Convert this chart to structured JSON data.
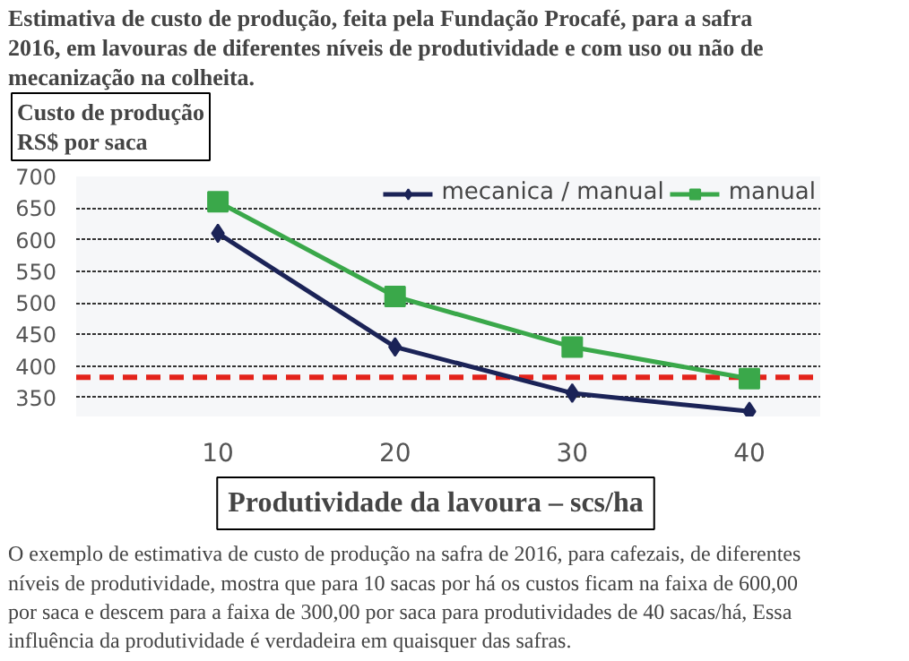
{
  "chart_data": {
    "type": "line",
    "title": "Estimativa de custo de produção, feita pela Fundação Procafé, para a safra 2016, em lavouras de diferentes níveis de produtividade e  com uso ou não de mecanização na colheita.",
    "ylabel": "Custo de produção\nRS$ por saca",
    "xlabel": "Produtividade da lavoura – scs/ha",
    "categories": [
      "10",
      "20",
      "30",
      "40"
    ],
    "series": [
      {
        "name": "mecanica / manual",
        "color": "#1b2357",
        "values": [
          610,
          430,
          357,
          328
        ],
        "marker": "diamond"
      },
      {
        "name": "manual",
        "color": "#3aa84a",
        "values": [
          660,
          510,
          430,
          380
        ],
        "marker": "square"
      }
    ],
    "ylim": [
      320,
      700
    ],
    "yticks": [
      350,
      400,
      450,
      500,
      550,
      600,
      650,
      700
    ],
    "grid": "y",
    "legend": "top",
    "ref_lines": [
      {
        "axis": "y",
        "value": 382,
        "color": "#e3231b",
        "line_style": "dashed"
      }
    ],
    "annotations": [
      "O exemplo de estimativa de custo de produção na safra de 2016, para cafezais, de diferentes níveis de produtividade,  mostra que para 10 sacas por há os custos ficam na faixa de 600,00 por saca e descem para a faixa de 300,00 por saca para produtividades de 40 sacas/há, Essa influência da produtividade é verdadeira em quaisquer das safras."
    ]
  }
}
